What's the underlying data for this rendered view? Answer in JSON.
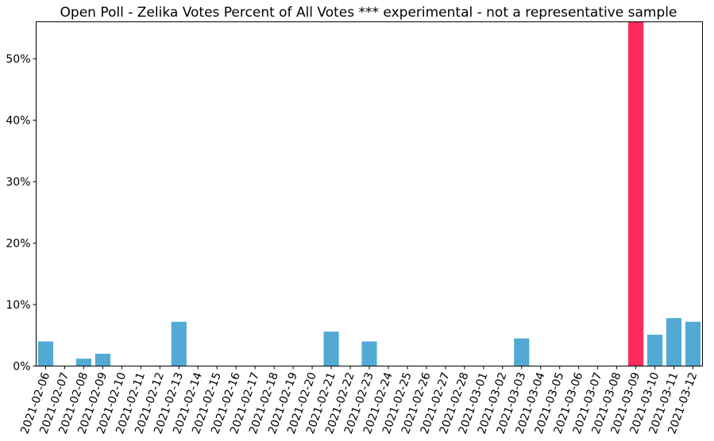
{
  "chart_data": {
    "type": "bar",
    "title": "Open Poll - Zelika Votes Percent of All Votes *** experimental - not a representative sample",
    "xlabel": "",
    "ylabel": "",
    "y_tick_format": "percent",
    "ylim": [
      0,
      56
    ],
    "yticks": [
      0,
      10,
      20,
      30,
      40,
      50
    ],
    "ytick_labels": [
      "0%",
      "10%",
      "20%",
      "30%",
      "40%",
      "50%"
    ],
    "grid": false,
    "legend": "none",
    "categories": [
      "2021-02-06",
      "2021-02-07",
      "2021-02-08",
      "2021-02-09",
      "2021-02-10",
      "2021-02-11",
      "2021-02-12",
      "2021-02-13",
      "2021-02-14",
      "2021-02-15",
      "2021-02-16",
      "2021-02-17",
      "2021-02-18",
      "2021-02-19",
      "2021-02-20",
      "2021-02-21",
      "2021-02-22",
      "2021-02-23",
      "2021-02-24",
      "2021-02-25",
      "2021-02-26",
      "2021-02-27",
      "2021-02-28",
      "2021-03-01",
      "2021-03-02",
      "2021-03-03",
      "2021-03-04",
      "2021-03-05",
      "2021-03-06",
      "2021-03-07",
      "2021-03-08",
      "2021-03-09",
      "2021-03-10",
      "2021-03-11",
      "2021-03-12"
    ],
    "values": [
      4.0,
      0,
      1.2,
      2.0,
      0,
      0,
      0,
      7.2,
      0,
      0,
      0,
      0,
      0,
      0,
      0,
      5.6,
      0,
      4.0,
      0,
      0,
      0,
      0,
      0,
      0,
      0,
      4.5,
      0,
      0,
      0,
      0,
      0,
      56.0,
      5.1,
      7.8,
      7.2
    ],
    "colors": {
      "default": "#52aad4",
      "highlight": "#fb2b5c"
    },
    "highlight_index": 31
  }
}
